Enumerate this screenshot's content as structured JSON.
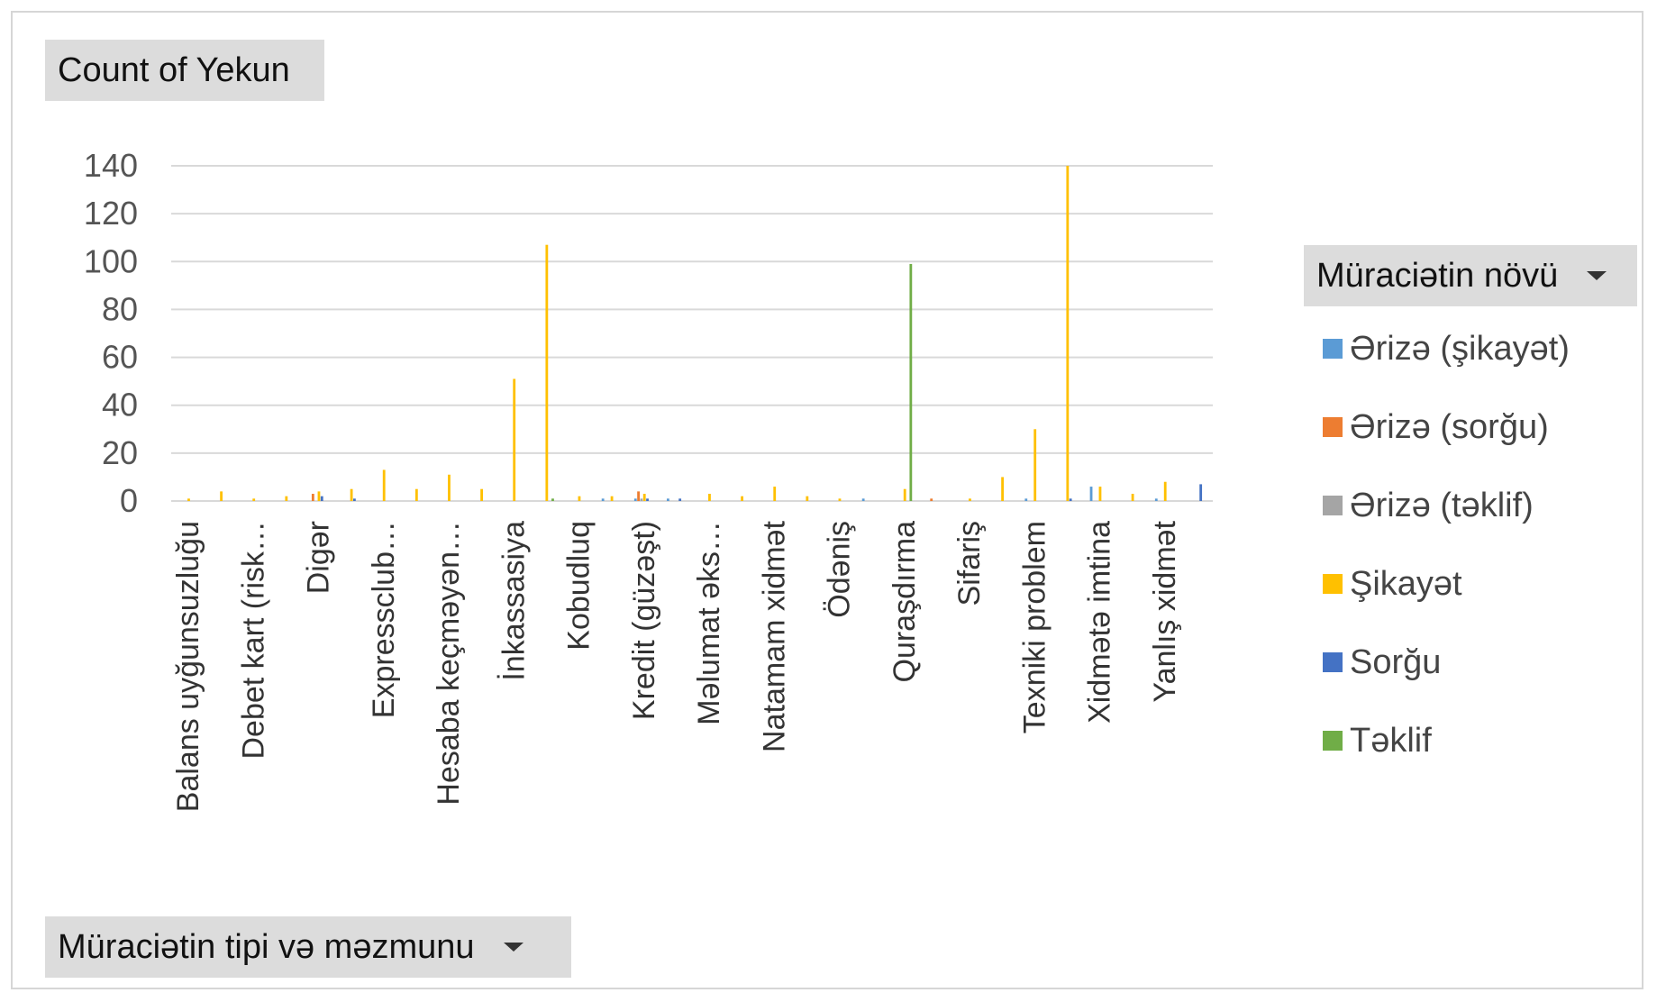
{
  "values_field": {
    "label": "Count of Yekun"
  },
  "axis_field": {
    "label": "Müraciətin tipi və məzmunu"
  },
  "legend_field": {
    "label": "Müraciətin növü"
  },
  "chart_data": {
    "type": "bar",
    "title": "",
    "xlabel": "",
    "ylabel": "",
    "ylim": [
      0,
      140
    ],
    "yticks": [
      0,
      20,
      40,
      60,
      80,
      100,
      120,
      140
    ],
    "grid": true,
    "legend_position": "right",
    "visible_labels": [
      "Balans uyğunsuzluğu",
      "Debet kart (risk…",
      "Digər",
      "Expressclub…",
      "Hesaba keçməyən…",
      "İnkassasiya",
      "Kobudluq",
      "Kredit (güzəşt)",
      "Məlumat əks…",
      "Natamam xidmət",
      "Ödəniş",
      "Quraşdırma",
      "Sifariş",
      "Texniki problem",
      "Xidmətə imtina",
      "Yanlış xidmət"
    ],
    "categories": [
      "Balans uyğunsuzluğu",
      "",
      "Debet kart (risk…",
      "",
      "Digər",
      "",
      "Expressclub…",
      "",
      "Hesaba keçməyən…",
      "",
      "İnkassasiya",
      "",
      "Kobudluq",
      "",
      "Kredit (güzəşt)",
      "",
      "Məlumat əks…",
      "",
      "Natamam xidmət",
      "",
      "Ödəniş",
      "",
      "Quraşdırma",
      "",
      "Sifariş",
      "",
      "Texniki problem",
      "",
      "Xidmətə imtina",
      "",
      "Yanlış xidmət",
      ""
    ],
    "series": [
      {
        "name": "Ərizə (şikayət)",
        "color": "#5B9BD5",
        "values": [
          0,
          0,
          0,
          0,
          0,
          0,
          0,
          0,
          0,
          0,
          0,
          0,
          0,
          1,
          1,
          1,
          0,
          0,
          0,
          0,
          0,
          1,
          0,
          0,
          0,
          0,
          1,
          0,
          6,
          0,
          1,
          0
        ]
      },
      {
        "name": "Ərizə (sorğu)",
        "color": "#ED7D31",
        "values": [
          0,
          0,
          0,
          0,
          3,
          0,
          0,
          0,
          0,
          0,
          0,
          0,
          0,
          0,
          4,
          0,
          0,
          0,
          0,
          0,
          0,
          0,
          0,
          1,
          0,
          0,
          0,
          0,
          0,
          0,
          0,
          0
        ]
      },
      {
        "name": "Ərizə (təklif)",
        "color": "#A5A5A5",
        "values": [
          0,
          0,
          0,
          0,
          0,
          0,
          0,
          0,
          0,
          0,
          0,
          0,
          0,
          0,
          1,
          0,
          0,
          0,
          0,
          0,
          0,
          0,
          0,
          0,
          0,
          0,
          0,
          0,
          0,
          0,
          0,
          0
        ]
      },
      {
        "name": "Şikayət",
        "color": "#FFC000",
        "values": [
          1,
          4,
          1,
          2,
          4,
          5,
          13,
          5,
          11,
          5,
          51,
          107,
          2,
          2,
          3,
          0,
          3,
          2,
          6,
          2,
          1,
          0,
          5,
          0,
          1,
          10,
          30,
          140,
          6,
          3,
          8,
          0
        ]
      },
      {
        "name": "Sorğu",
        "color": "#4472C4",
        "values": [
          0,
          0,
          0,
          0,
          2,
          1,
          0,
          0,
          0,
          0,
          0,
          0,
          0,
          0,
          1,
          1,
          0,
          0,
          0,
          0,
          0,
          0,
          0,
          0,
          0,
          0,
          0,
          1,
          0,
          0,
          0,
          7
        ]
      },
      {
        "name": "Təklif",
        "color": "#70AD47",
        "values": [
          0,
          0,
          0,
          0,
          0,
          0,
          0,
          0,
          0,
          0,
          0,
          1,
          0,
          0,
          0,
          0,
          0,
          0,
          0,
          0,
          0,
          0,
          99,
          0,
          0,
          0,
          0,
          0,
          0,
          0,
          0,
          0
        ]
      }
    ]
  }
}
